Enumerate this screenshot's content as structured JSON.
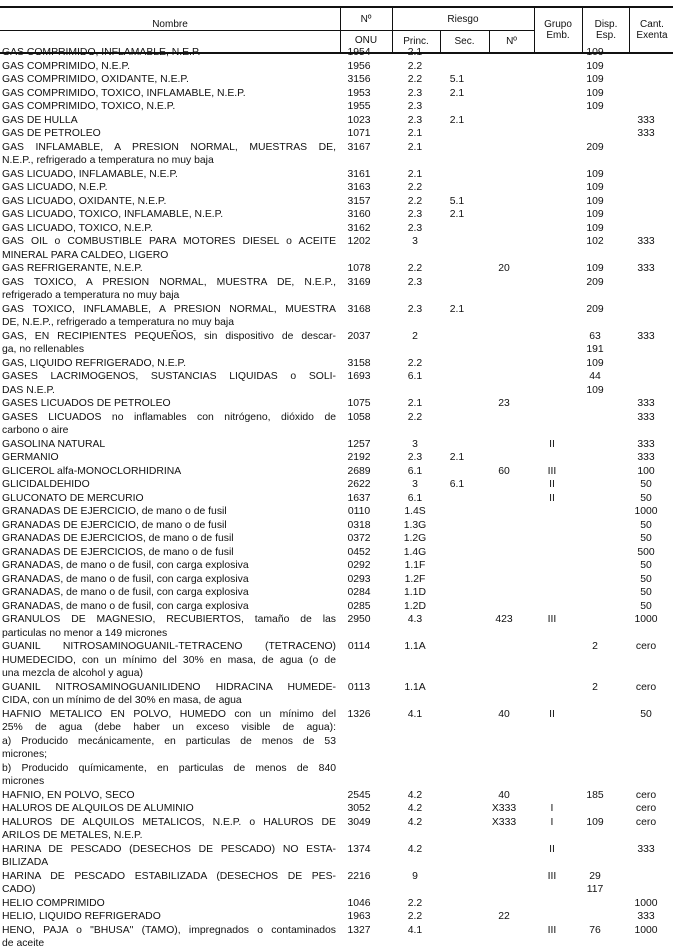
{
  "header": {
    "nombre": "Nombre",
    "onu_top": "Nº",
    "onu_bottom": "ONU",
    "riesgo": "Riesgo",
    "princ": "Princ.",
    "sec": "Sec.",
    "num": "Nº",
    "grupo": "Grupo Emb.",
    "disp": "Disp. Esp.",
    "cant": "Cant. Exenta"
  },
  "rows": [
    {
      "name": [
        "GAS COMPRIMIDO, INFLAMABLE, N.E.P."
      ],
      "onu": "1954",
      "princ": "2.1",
      "sec": "",
      "num": "",
      "grupo": "",
      "disp": [
        "109"
      ],
      "cant": ""
    },
    {
      "name": [
        "GAS COMPRIMIDO, N.E.P."
      ],
      "onu": "1956",
      "princ": "2.2",
      "sec": "",
      "num": "",
      "grupo": "",
      "disp": [
        "109"
      ],
      "cant": ""
    },
    {
      "name": [
        "GAS COMPRIMIDO, OXIDANTE, N.E.P."
      ],
      "onu": "3156",
      "princ": "2.2",
      "sec": "5.1",
      "num": "",
      "grupo": "",
      "disp": [
        "109"
      ],
      "cant": ""
    },
    {
      "name": [
        "GAS COMPRIMIDO, TOXICO, INFLAMABLE, N.E.P."
      ],
      "onu": "1953",
      "princ": "2.3",
      "sec": "2.1",
      "num": "",
      "grupo": "",
      "disp": [
        "109"
      ],
      "cant": ""
    },
    {
      "name": [
        "GAS COMPRIMIDO, TOXICO, N.E.P."
      ],
      "onu": "1955",
      "princ": "2.3",
      "sec": "",
      "num": "",
      "grupo": "",
      "disp": [
        "109"
      ],
      "cant": ""
    },
    {
      "name": [
        "GAS DE HULLA"
      ],
      "onu": "1023",
      "princ": "2.3",
      "sec": "2.1",
      "num": "",
      "grupo": "",
      "disp": [],
      "cant": "333"
    },
    {
      "name": [
        "GAS DE PETROLEO"
      ],
      "onu": "1071",
      "princ": "2.1",
      "sec": "",
      "num": "",
      "grupo": "",
      "disp": [],
      "cant": "333"
    },
    {
      "name": [
        "GAS INFLAMABLE, A PRESION NORMAL, MUESTRAS DE,",
        "N.E.P., refrigerado a temperatura no muy baja"
      ],
      "onu": "3167",
      "princ": "2.1",
      "sec": "",
      "num": "",
      "grupo": "",
      "disp": [
        "209"
      ],
      "cant": ""
    },
    {
      "name": [
        "GAS LICUADO, INFLAMABLE, N.E.P."
      ],
      "onu": "3161",
      "princ": "2.1",
      "sec": "",
      "num": "",
      "grupo": "",
      "disp": [
        "109"
      ],
      "cant": ""
    },
    {
      "name": [
        "GAS LICUADO, N.E.P."
      ],
      "onu": "3163",
      "princ": "2.2",
      "sec": "",
      "num": "",
      "grupo": "",
      "disp": [
        "109"
      ],
      "cant": ""
    },
    {
      "name": [
        "GAS LICUADO, OXIDANTE, N.E.P."
      ],
      "onu": "3157",
      "princ": "2.2",
      "sec": "5.1",
      "num": "",
      "grupo": "",
      "disp": [
        "109"
      ],
      "cant": ""
    },
    {
      "name": [
        "GAS LICUADO, TOXICO, INFLAMABLE, N.E.P."
      ],
      "onu": "3160",
      "princ": "2.3",
      "sec": "2.1",
      "num": "",
      "grupo": "",
      "disp": [
        "109"
      ],
      "cant": ""
    },
    {
      "name": [
        "GAS LICUADO, TOXICO, N.E.P."
      ],
      "onu": "3162",
      "princ": "2.3",
      "sec": "",
      "num": "",
      "grupo": "",
      "disp": [
        "109"
      ],
      "cant": ""
    },
    {
      "name": [
        "GAS OIL o COMBUSTIBLE PARA MOTORES DIESEL o ACEITE",
        "MINERAL PARA CALDEO, LIGERO"
      ],
      "onu": "1202",
      "princ": "3",
      "sec": "",
      "num": "",
      "grupo": "",
      "disp": [
        "102"
      ],
      "cant": "333"
    },
    {
      "name": [
        "GAS REFRIGERANTE, N.E.P."
      ],
      "onu": "1078",
      "princ": "2.2",
      "sec": "",
      "num": "20",
      "grupo": "",
      "disp": [
        "109"
      ],
      "cant": "333"
    },
    {
      "name": [
        "GAS TOXICO, A PRESION NORMAL, MUESTRA DE, N.E.P.,",
        "refrigerado a temperatura no muy baja"
      ],
      "onu": "3169",
      "princ": "2.3",
      "sec": "",
      "num": "",
      "grupo": "",
      "disp": [
        "209"
      ],
      "cant": ""
    },
    {
      "name": [
        "GAS TOXICO, INFLAMABLE, A PRESION NORMAL, MUESTRA",
        "DE, N.E.P., refrigerado a temperatura no muy baja"
      ],
      "onu": "3168",
      "princ": "2.3",
      "sec": "2.1",
      "num": "",
      "grupo": "",
      "disp": [
        "209"
      ],
      "cant": ""
    },
    {
      "name": [
        "GAS, EN RECIPIENTES PEQUEÑOS, sin dispositivo de descar-",
        "ga, no rellenables"
      ],
      "onu": "2037",
      "princ": "2",
      "sec": "",
      "num": "",
      "grupo": "",
      "disp": [
        "63",
        "191"
      ],
      "cant": "333"
    },
    {
      "name": [
        "GAS, LIQUIDO REFRIGERADO, N.E.P."
      ],
      "onu": "3158",
      "princ": "2.2",
      "sec": "",
      "num": "",
      "grupo": "",
      "disp": [
        "109"
      ],
      "cant": ""
    },
    {
      "name": [
        "GASES LACRIMOGENOS, SUSTANCIAS LIQUIDAS o SOLI-",
        "DAS N.E.P."
      ],
      "onu": "1693",
      "princ": "6.1",
      "sec": "",
      "num": "",
      "grupo": "",
      "disp": [
        "44",
        "109"
      ],
      "cant": ""
    },
    {
      "name": [
        "GASES LICUADOS DE PETROLEO"
      ],
      "onu": "1075",
      "princ": "2.1",
      "sec": "",
      "num": "23",
      "grupo": "",
      "disp": [],
      "cant": "333"
    },
    {
      "name": [
        "GASES LICUADOS no inflamables con nitrógeno, dióxido de",
        "carbono o aire"
      ],
      "onu": "1058",
      "princ": "2.2",
      "sec": "",
      "num": "",
      "grupo": "",
      "disp": [],
      "cant": "333"
    },
    {
      "name": [
        "GASOLINA NATURAL"
      ],
      "onu": "1257",
      "princ": "3",
      "sec": "",
      "num": "",
      "grupo": "II",
      "disp": [],
      "cant": "333"
    },
    {
      "name": [
        "GERMANIO"
      ],
      "onu": "2192",
      "princ": "2.3",
      "sec": "2.1",
      "num": "",
      "grupo": "",
      "disp": [],
      "cant": "333"
    },
    {
      "name": [
        "GLICEROL alfa-MONOCLORHIDRINA"
      ],
      "onu": "2689",
      "princ": "6.1",
      "sec": "",
      "num": "60",
      "grupo": "III",
      "disp": [],
      "cant": "100"
    },
    {
      "name": [
        "GLICIDALDEHIDO"
      ],
      "onu": "2622",
      "princ": "3",
      "sec": "6.1",
      "num": "",
      "grupo": "II",
      "disp": [],
      "cant": "50"
    },
    {
      "name": [
        "GLUCONATO DE MERCURIO"
      ],
      "onu": "1637",
      "princ": "6.1",
      "sec": "",
      "num": "",
      "grupo": "II",
      "disp": [],
      "cant": "50"
    },
    {
      "name": [
        "GRANADAS DE EJERCICIO, de mano o de fusil"
      ],
      "onu": "0110",
      "princ": "1.4S",
      "sec": "",
      "num": "",
      "grupo": "",
      "disp": [],
      "cant": "1000"
    },
    {
      "name": [
        "GRANADAS DE EJERCICIO, de mano o de fusil"
      ],
      "onu": "0318",
      "princ": "1.3G",
      "sec": "",
      "num": "",
      "grupo": "",
      "disp": [],
      "cant": "50"
    },
    {
      "name": [
        "GRANADAS DE EJERCICIOS, de mano o de fusil"
      ],
      "onu": "0372",
      "princ": "1.2G",
      "sec": "",
      "num": "",
      "grupo": "",
      "disp": [],
      "cant": "50"
    },
    {
      "name": [
        "GRANADAS DE EJERCICIOS, de mano o de fusil"
      ],
      "onu": "0452",
      "princ": "1.4G",
      "sec": "",
      "num": "",
      "grupo": "",
      "disp": [],
      "cant": "500"
    },
    {
      "name": [
        "GRANADAS, de mano o de fusil, con carga explosiva"
      ],
      "onu": "0292",
      "princ": "1.1F",
      "sec": "",
      "num": "",
      "grupo": "",
      "disp": [],
      "cant": "50"
    },
    {
      "name": [
        "GRANADAS, de mano o de fusil, con carga explosiva"
      ],
      "onu": "0293",
      "princ": "1.2F",
      "sec": "",
      "num": "",
      "grupo": "",
      "disp": [],
      "cant": "50"
    },
    {
      "name": [
        "GRANADAS, de mano o de fusil, con carga explosiva"
      ],
      "onu": "0284",
      "princ": "1.1D",
      "sec": "",
      "num": "",
      "grupo": "",
      "disp": [],
      "cant": "50"
    },
    {
      "name": [
        "GRANADAS, de mano o de fusil, con carga explosiva"
      ],
      "onu": "0285",
      "princ": "1.2D",
      "sec": "",
      "num": "",
      "grupo": "",
      "disp": [],
      "cant": "50"
    },
    {
      "name": [
        "GRANULOS DE MAGNESIO, RECUBIERTOS, tamaño de las",
        "particulas no menor a 149 micrones"
      ],
      "onu": "2950",
      "princ": "4.3",
      "sec": "",
      "num": "423",
      "grupo": "III",
      "disp": [],
      "cant": "1000"
    },
    {
      "name": [
        "GUANIL NITROSAMINOGUANIL-TETRACENO (TETRACENO)",
        "HUMEDECIDO, con un mínimo del 30% en masa, de agua (o de",
        "una mezcla de alcohol y agua)"
      ],
      "onu": "0114",
      "princ": "1.1A",
      "sec": "",
      "num": "",
      "grupo": "",
      "disp": [
        "2"
      ],
      "cant": "cero"
    },
    {
      "name": [
        "GUANIL NITROSAMINOGUANILIDENO HIDRACINA HUMEDE-",
        "CIDA, con un mínimo de del 30% en masa, de agua"
      ],
      "onu": "0113",
      "princ": "1.1A",
      "sec": "",
      "num": "",
      "grupo": "",
      "disp": [
        "2"
      ],
      "cant": "cero"
    },
    {
      "name": [
        "HAFNIO METALICO EN POLVO, HUMEDO con un mínimo del",
        "25% de agua (debe haber un exceso visible de agua):",
        "a) Producido mecánicamente, en particulas de menos de 53",
        "micrones;",
        "b) Producido químicamente, en particulas de menos de 840",
        "micrones"
      ],
      "onu": "1326",
      "princ": "4.1",
      "sec": "",
      "num": "40",
      "grupo": "II",
      "disp": [],
      "cant": "50"
    },
    {
      "name": [
        "HAFNIO, EN POLVO, SECO"
      ],
      "onu": "2545",
      "princ": "4.2",
      "sec": "",
      "num": "40",
      "grupo": "",
      "disp": [
        "185"
      ],
      "cant": "cero"
    },
    {
      "name": [
        "HALUROS DE ALQUILOS DE ALUMINIO"
      ],
      "onu": "3052",
      "princ": "4.2",
      "sec": "",
      "num": "X333",
      "grupo": "I",
      "disp": [],
      "cant": "cero"
    },
    {
      "name": [
        "HALUROS DE ALQUILOS METALICOS, N.E.P. o HALUROS DE",
        "ARILOS DE METALES, N.E.P."
      ],
      "onu": "3049",
      "princ": "4.2",
      "sec": "",
      "num": "X333",
      "grupo": "I",
      "disp": [
        "109"
      ],
      "cant": "cero"
    },
    {
      "name": [
        "HARINA DE PESCADO (DESECHOS DE PESCADO) NO ESTA-",
        "BILIZADA"
      ],
      "onu": "1374",
      "princ": "4.2",
      "sec": "",
      "num": "",
      "grupo": "II",
      "disp": [],
      "cant": "333"
    },
    {
      "name": [
        "HARINA DE PESCADO ESTABILIZADA (DESECHOS DE PES-",
        "CADO)"
      ],
      "onu": "2216",
      "princ": "9",
      "sec": "",
      "num": "",
      "grupo": "III",
      "disp": [
        "29",
        "117"
      ],
      "cant": ""
    },
    {
      "name": [
        "HELIO COMPRIMIDO"
      ],
      "onu": "1046",
      "princ": "2.2",
      "sec": "",
      "num": "",
      "grupo": "",
      "disp": [],
      "cant": "1000"
    },
    {
      "name": [
        "HELIO, LIQUIDO REFRIGERADO"
      ],
      "onu": "1963",
      "princ": "2.2",
      "sec": "",
      "num": "22",
      "grupo": "",
      "disp": [],
      "cant": "333"
    },
    {
      "name": [
        "HENO, PAJA o \"BHUSA\" (TAMO), impregnados o contaminados",
        "de aceite"
      ],
      "onu": "1327",
      "princ": "4.1",
      "sec": "",
      "num": "",
      "grupo": "III",
      "disp": [
        "76"
      ],
      "cant": "1000"
    }
  ]
}
